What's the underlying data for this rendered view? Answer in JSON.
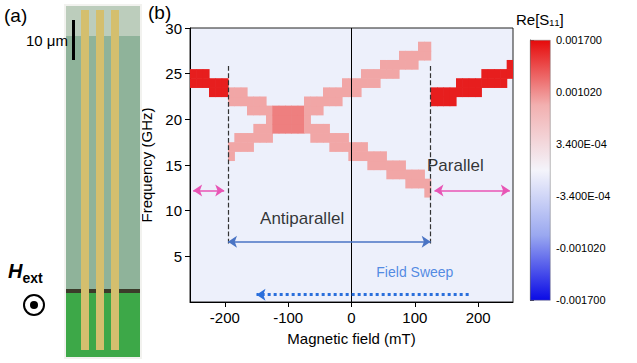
{
  "panel_a": {
    "label": "(a)",
    "scale_bar": "10 μm",
    "field_symbol": "H",
    "field_subscript": "ext"
  },
  "chart_data": {
    "type": "heatmap",
    "panel_label": "(b)",
    "x_label": "Magnetic field (mT)",
    "y_label": "Frequency (GHz)",
    "xlim": [
      -255,
      255
    ],
    "xticks": [
      -200,
      -100,
      0,
      100,
      200
    ],
    "ylim": [
      0,
      30
    ],
    "yticks": [
      5,
      10,
      15,
      20,
      25,
      30
    ],
    "grid": false,
    "colorbar": {
      "title": "Re[S₁₁]",
      "range": [
        -0.0017,
        0.0017
      ],
      "ticks": [
        {
          "value": -0.0017,
          "label": "-0.001700"
        },
        {
          "value": -0.00102,
          "label": "-0.001020"
        },
        {
          "value": -0.00034,
          "label": "-3.400E-04"
        },
        {
          "value": 0.00034,
          "label": "3.400E-04"
        },
        {
          "value": 0.00102,
          "label": "0.001020"
        },
        {
          "value": 0.0017,
          "label": "0.001700"
        }
      ]
    },
    "cells": [
      [
        -250,
        24,
        0.0016
      ],
      [
        -250,
        25,
        0.0016
      ],
      [
        -240,
        24,
        0.0016
      ],
      [
        -240,
        25,
        0.0016
      ],
      [
        -230,
        24,
        0.0016
      ],
      [
        -230,
        25,
        0.0016
      ],
      [
        -220,
        23,
        0.0016
      ],
      [
        -220,
        24,
        0.0016
      ],
      [
        -210,
        23,
        0.0016
      ],
      [
        -210,
        24,
        0.0016
      ],
      [
        -200,
        23,
        0.0016
      ],
      [
        -200,
        24,
        0.0016
      ],
      [
        -190,
        16,
        0.0009
      ],
      [
        -190,
        17,
        0.0009
      ],
      [
        -190,
        22,
        0.0009
      ],
      [
        -190,
        23,
        0.0009
      ],
      [
        -180,
        17,
        0.0009
      ],
      [
        -180,
        18,
        0.0009
      ],
      [
        -180,
        22,
        0.0009
      ],
      [
        -180,
        23,
        0.0009
      ],
      [
        -170,
        17,
        0.0009
      ],
      [
        -170,
        18,
        0.0009
      ],
      [
        -170,
        22,
        0.0009
      ],
      [
        -170,
        23,
        0.0009
      ],
      [
        -160,
        17,
        0.0009
      ],
      [
        -160,
        18,
        0.0009
      ],
      [
        -160,
        21,
        0.0009
      ],
      [
        -160,
        22,
        0.0009
      ],
      [
        -150,
        18,
        0.0009
      ],
      [
        -150,
        19,
        0.0009
      ],
      [
        -150,
        21,
        0.0009
      ],
      [
        -150,
        22,
        0.0009
      ],
      [
        -140,
        18,
        0.0009
      ],
      [
        -140,
        19,
        0.0009
      ],
      [
        -140,
        21,
        0.0009
      ],
      [
        -140,
        22,
        0.0009
      ],
      [
        -130,
        18,
        0.0009
      ],
      [
        -130,
        19,
        0.0009
      ],
      [
        -130,
        20,
        0.0009
      ],
      [
        -130,
        21,
        0.0009
      ],
      [
        -120,
        19,
        0.0011
      ],
      [
        -120,
        20,
        0.0011
      ],
      [
        -120,
        21,
        0.0011
      ],
      [
        -110,
        19,
        0.0011
      ],
      [
        -110,
        20,
        0.0011
      ],
      [
        -110,
        21,
        0.0011
      ],
      [
        -100,
        19,
        0.0011
      ],
      [
        -100,
        20,
        0.0011
      ],
      [
        -100,
        21,
        0.0011
      ],
      [
        -90,
        19,
        0.0011
      ],
      [
        -90,
        20,
        0.0011
      ],
      [
        -90,
        21,
        0.0011
      ],
      [
        -80,
        19,
        0.0011
      ],
      [
        -80,
        20,
        0.0011
      ],
      [
        -80,
        21,
        0.0011
      ],
      [
        -70,
        19,
        0.0009
      ],
      [
        -70,
        20,
        0.0009
      ],
      [
        -70,
        21,
        0.0009
      ],
      [
        -70,
        22,
        0.0009
      ],
      [
        -60,
        18,
        0.0009
      ],
      [
        -60,
        19,
        0.0009
      ],
      [
        -60,
        21,
        0.0009
      ],
      [
        -60,
        22,
        0.0009
      ],
      [
        -50,
        18,
        0.0009
      ],
      [
        -50,
        19,
        0.0009
      ],
      [
        -50,
        21,
        0.0009
      ],
      [
        -50,
        22,
        0.0009
      ],
      [
        -40,
        18,
        0.0009
      ],
      [
        -40,
        19,
        0.0009
      ],
      [
        -40,
        22,
        0.0009
      ],
      [
        -40,
        23,
        0.0009
      ],
      [
        -30,
        17,
        0.0009
      ],
      [
        -30,
        18,
        0.0009
      ],
      [
        -30,
        22,
        0.0009
      ],
      [
        -30,
        23,
        0.0009
      ],
      [
        -20,
        17,
        0.0009
      ],
      [
        -20,
        18,
        0.0009
      ],
      [
        -20,
        22,
        0.0009
      ],
      [
        -20,
        23,
        0.0009
      ],
      [
        -10,
        17,
        0.0009
      ],
      [
        -10,
        18,
        0.0009
      ],
      [
        -10,
        23,
        0.0009
      ],
      [
        -10,
        24,
        0.0009
      ],
      [
        0,
        16,
        0.0009
      ],
      [
        0,
        17,
        0.0009
      ],
      [
        0,
        23,
        0.0009
      ],
      [
        0,
        24,
        0.0009
      ],
      [
        10,
        16,
        0.0009
      ],
      [
        10,
        17,
        0.0009
      ],
      [
        10,
        23,
        0.0009
      ],
      [
        10,
        24,
        0.0009
      ],
      [
        20,
        16,
        0.0009
      ],
      [
        20,
        17,
        0.0009
      ],
      [
        20,
        24,
        0.0009
      ],
      [
        20,
        25,
        0.0009
      ],
      [
        30,
        15,
        0.0009
      ],
      [
        30,
        16,
        0.0009
      ],
      [
        30,
        24,
        0.0009
      ],
      [
        30,
        25,
        0.0009
      ],
      [
        40,
        15,
        0.0009
      ],
      [
        40,
        16,
        0.0009
      ],
      [
        40,
        24,
        0.0009
      ],
      [
        40,
        25,
        0.0009
      ],
      [
        50,
        15,
        0.0009
      ],
      [
        50,
        16,
        0.0009
      ],
      [
        50,
        25,
        0.0009
      ],
      [
        50,
        26,
        0.0009
      ],
      [
        60,
        14,
        0.0009
      ],
      [
        60,
        15,
        0.0009
      ],
      [
        60,
        25,
        0.0009
      ],
      [
        60,
        26,
        0.0009
      ],
      [
        70,
        14,
        0.0009
      ],
      [
        70,
        15,
        0.0009
      ],
      [
        70,
        25,
        0.0009
      ],
      [
        70,
        26,
        0.0009
      ],
      [
        80,
        14,
        0.0009
      ],
      [
        80,
        15,
        0.0009
      ],
      [
        80,
        26,
        0.0009
      ],
      [
        80,
        27,
        0.0009
      ],
      [
        90,
        13,
        0.0009
      ],
      [
        90,
        14,
        0.0009
      ],
      [
        90,
        26,
        0.0009
      ],
      [
        90,
        27,
        0.0009
      ],
      [
        100,
        13,
        0.0009
      ],
      [
        100,
        14,
        0.0009
      ],
      [
        100,
        26,
        0.0009
      ],
      [
        100,
        27,
        0.0009
      ],
      [
        110,
        13,
        0.0009
      ],
      [
        110,
        14,
        0.0009
      ],
      [
        110,
        27,
        0.0009
      ],
      [
        110,
        28,
        0.0009
      ],
      [
        120,
        12,
        0.0009
      ],
      [
        120,
        13,
        0.0009
      ],
      [
        120,
        27,
        0.0009
      ],
      [
        120,
        28,
        0.0009
      ],
      [
        130,
        22,
        0.0016
      ],
      [
        130,
        23,
        0.0016
      ],
      [
        140,
        22,
        0.0016
      ],
      [
        140,
        23,
        0.0016
      ],
      [
        150,
        22,
        0.0016
      ],
      [
        150,
        23,
        0.0016
      ],
      [
        160,
        22,
        0.0016
      ],
      [
        160,
        23,
        0.0016
      ],
      [
        170,
        23,
        0.0016
      ],
      [
        170,
        24,
        0.0016
      ],
      [
        180,
        23,
        0.0016
      ],
      [
        180,
        24,
        0.0016
      ],
      [
        190,
        23,
        0.0016
      ],
      [
        190,
        24,
        0.0016
      ],
      [
        200,
        23,
        0.0016
      ],
      [
        200,
        24,
        0.0016
      ],
      [
        210,
        24,
        0.0016
      ],
      [
        210,
        25,
        0.0016
      ],
      [
        220,
        24,
        0.0016
      ],
      [
        220,
        25,
        0.0016
      ],
      [
        230,
        24,
        0.0016
      ],
      [
        230,
        25,
        0.0016
      ],
      [
        240,
        24,
        0.0016
      ],
      [
        240,
        25,
        0.0016
      ],
      [
        250,
        25,
        0.0016
      ],
      [
        250,
        26,
        0.0016
      ]
    ],
    "vlines": [
      {
        "x": -195,
        "line_style": "dashed"
      },
      {
        "x": 0,
        "line_style": "solid"
      },
      {
        "x": 125,
        "line_style": "dashed"
      }
    ],
    "annotations": [
      {
        "text": "Antiparallel",
        "color": "#000000"
      },
      {
        "text": "Parallel",
        "color": "#000000"
      },
      {
        "text": "Field Sweep",
        "color": "#2a6fdc"
      }
    ]
  }
}
